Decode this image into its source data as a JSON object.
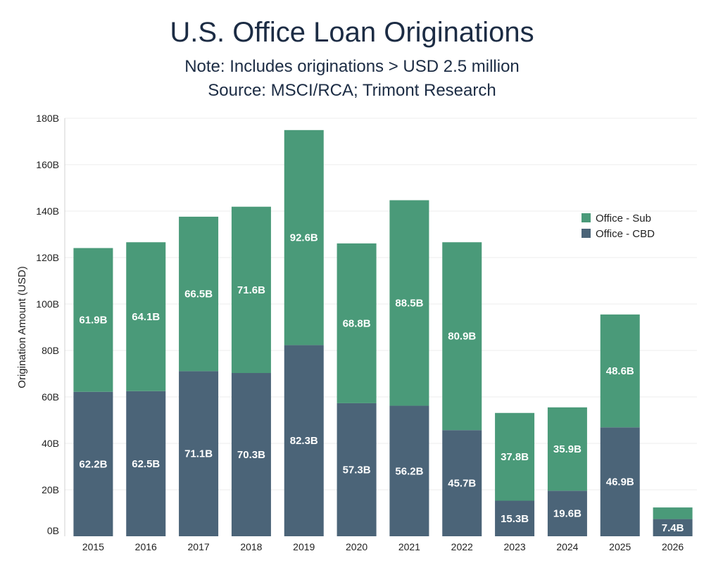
{
  "chart_data": {
    "type": "bar",
    "stacked": true,
    "title": "U.S. Office Loan Originations",
    "subtitle_lines": [
      "Note: Includes originations > USD 2.5 million",
      "Source: MSCI/RCA; Trimont Research"
    ],
    "xlabel": "",
    "ylabel": "Origination Amount (USD)",
    "ylim": [
      0,
      180
    ],
    "yticks": [
      0,
      20,
      40,
      60,
      80,
      100,
      120,
      140,
      160,
      180
    ],
    "ytick_labels": [
      "0B",
      "20B",
      "40B",
      "60B",
      "80B",
      "100B",
      "120B",
      "140B",
      "160B",
      "180B"
    ],
    "categories": [
      "2015",
      "2016",
      "2017",
      "2018",
      "2019",
      "2020",
      "2021",
      "2022",
      "2023",
      "2024",
      "2025",
      "2026"
    ],
    "series": [
      {
        "name": "Office - CBD",
        "color": "#4b6478",
        "values": [
          62.2,
          62.5,
          71.1,
          70.3,
          82.3,
          57.3,
          56.2,
          45.7,
          15.3,
          19.6,
          46.9,
          7.4
        ],
        "labels": [
          "62.2B",
          "62.5B",
          "71.1B",
          "70.3B",
          "82.3B",
          "57.3B",
          "56.2B",
          "45.7B",
          "15.3B",
          "19.6B",
          "46.9B",
          "7.4B"
        ]
      },
      {
        "name": "Office - Sub",
        "color": "#4a9a79",
        "values": [
          61.9,
          64.1,
          66.5,
          71.6,
          92.6,
          68.8,
          88.5,
          80.9,
          37.8,
          35.9,
          48.6,
          5.0
        ],
        "labels": [
          "61.9B",
          "64.1B",
          "66.5B",
          "71.6B",
          "92.6B",
          "68.8B",
          "88.5B",
          "80.9B",
          "37.8B",
          "35.9B",
          "48.6B",
          ""
        ]
      }
    ],
    "legend": {
      "position": "right",
      "entries": [
        "Office - Sub",
        "Office - CBD"
      ]
    },
    "grid": true
  }
}
